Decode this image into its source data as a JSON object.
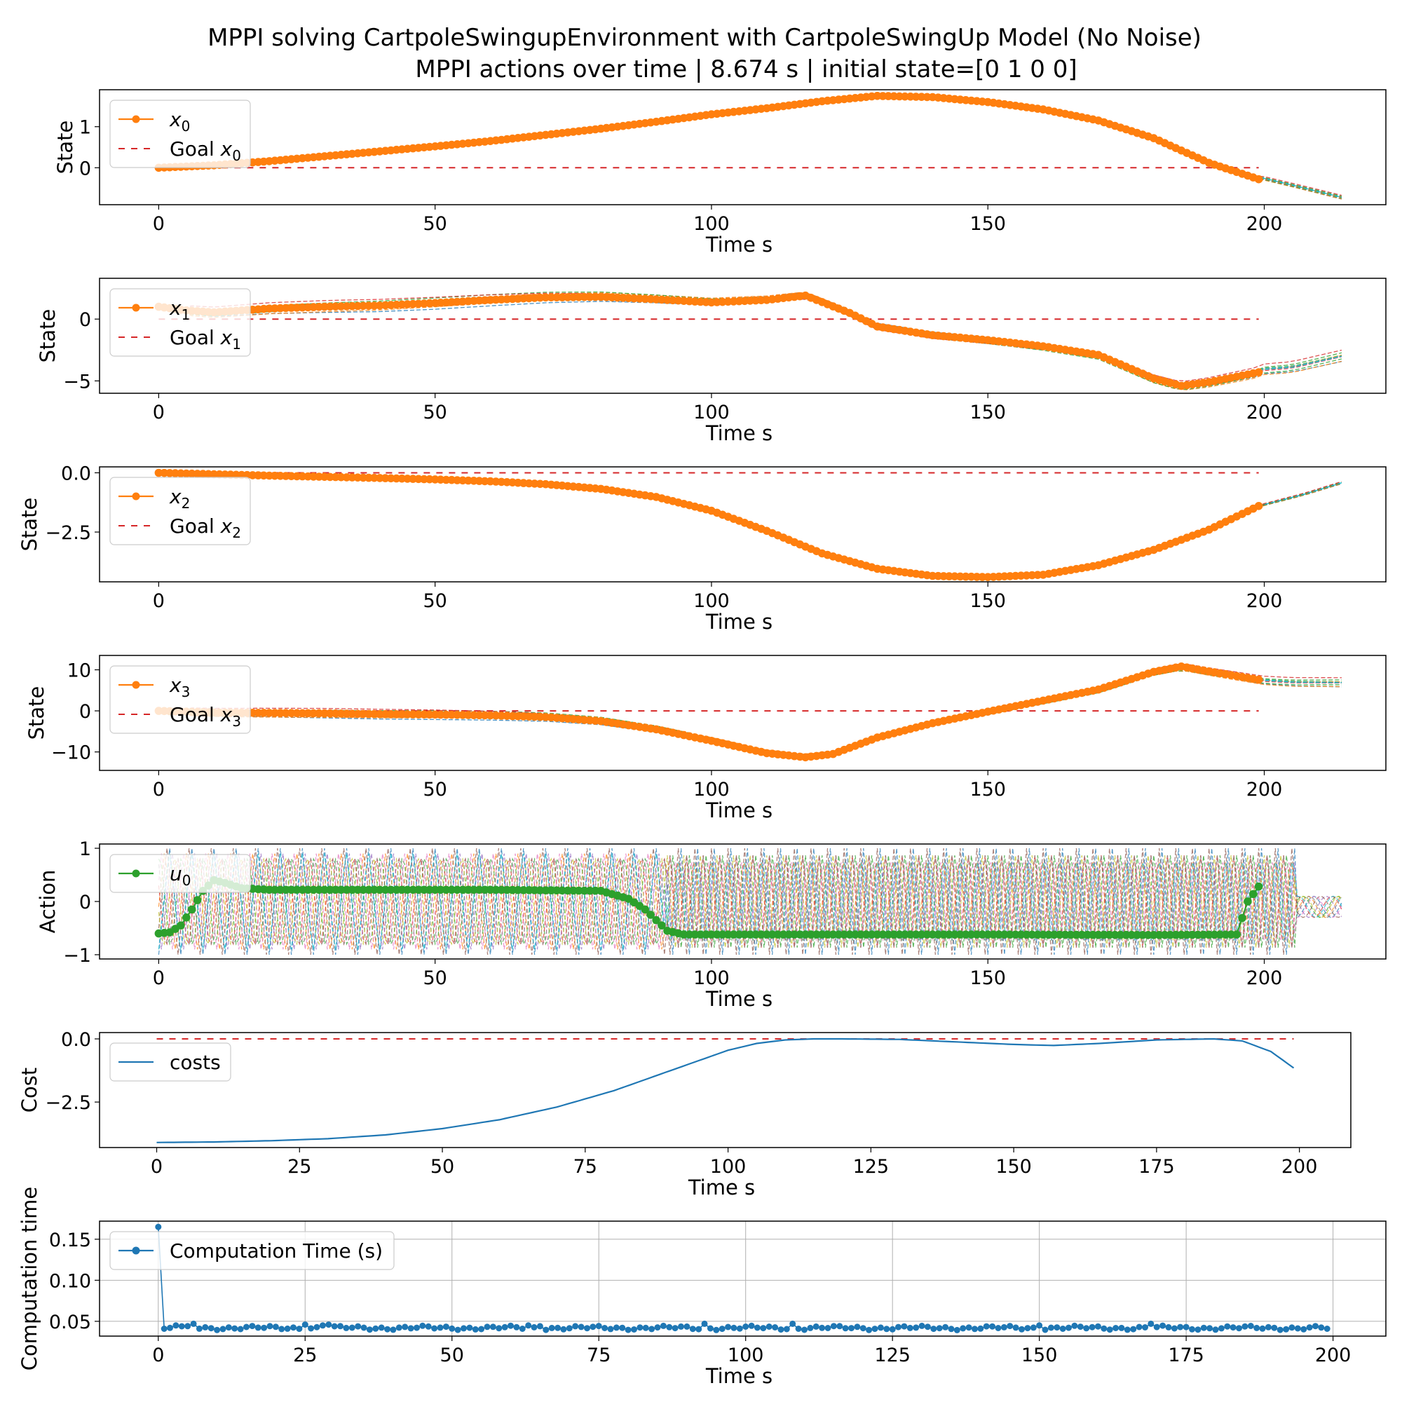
{
  "suptitle": "MPPI solving CartpoleSwingupEnvironment with CartpoleSwingUp Model (No Noise)",
  "colors": {
    "state": "#ff7f0e",
    "action": "#2ca02c",
    "cost": "#1f77b4",
    "goal": "#d62728",
    "rollouts": [
      "#1f77b4",
      "#ff7f0e",
      "#2ca02c",
      "#d62728",
      "#9467bd",
      "#8c564b",
      "#e377c2",
      "#7f7f7f",
      "#bcbd22",
      "#17becf"
    ]
  },
  "chart_data": [
    {
      "id": "x0",
      "type": "line",
      "title": "MPPI actions over time | 8.674 s | initial state=[0 1 0 0]",
      "xlabel": "Time s",
      "ylabel": "State",
      "xlim": [
        -10.7,
        222
      ],
      "ylim": [
        -0.9,
        1.9
      ],
      "xticks": [
        0,
        50,
        100,
        150,
        200
      ],
      "yticks": [
        0,
        1
      ],
      "grid": false,
      "legend": {
        "placement": "upper-left",
        "entries": [
          {
            "label": "x",
            "sub": "0",
            "style": "marker-line"
          },
          {
            "label": "Goal x",
            "sub": "0",
            "style": "dashed"
          }
        ]
      },
      "series": [
        {
          "role": "main",
          "x": [
            0,
            10,
            20,
            30,
            40,
            50,
            60,
            70,
            80,
            90,
            100,
            110,
            120,
            130,
            140,
            150,
            160,
            170,
            180,
            190,
            199
          ],
          "y": [
            0,
            0.06,
            0.16,
            0.28,
            0.4,
            0.52,
            0.65,
            0.8,
            0.95,
            1.12,
            1.3,
            1.45,
            1.62,
            1.75,
            1.72,
            1.6,
            1.42,
            1.15,
            0.72,
            0.12,
            -0.28
          ]
        },
        {
          "role": "rollout_tail",
          "x": [
            195,
            205,
            214
          ],
          "y": [
            -0.1,
            -0.42,
            -0.72
          ]
        },
        {
          "role": "goal",
          "x": [
            0,
            199
          ],
          "y": [
            0,
            0
          ]
        }
      ],
      "rollout_spread": 0.05
    },
    {
      "id": "x1",
      "type": "line",
      "xlabel": "Time s",
      "ylabel": "State",
      "xlim": [
        -10.7,
        222
      ],
      "ylim": [
        -6,
        3.3
      ],
      "xticks": [
        0,
        50,
        100,
        150,
        200
      ],
      "yticks": [
        -5,
        0
      ],
      "grid": false,
      "legend": {
        "placement": "upper-left",
        "entries": [
          {
            "label": "x",
            "sub": "1",
            "style": "marker-line"
          },
          {
            "label": "Goal x",
            "sub": "1",
            "style": "dashed"
          }
        ]
      },
      "series": [
        {
          "role": "main",
          "x": [
            0,
            5,
            10,
            20,
            30,
            40,
            50,
            60,
            70,
            80,
            90,
            100,
            110,
            117,
            125,
            130,
            140,
            150,
            160,
            170,
            180,
            185,
            190,
            199
          ],
          "y": [
            1.0,
            0.7,
            0.55,
            0.85,
            1.0,
            1.1,
            1.3,
            1.55,
            1.75,
            1.8,
            1.6,
            1.35,
            1.55,
            1.9,
            0.5,
            -0.6,
            -1.3,
            -1.7,
            -2.2,
            -2.9,
            -4.8,
            -5.4,
            -5.1,
            -4.3
          ]
        },
        {
          "role": "rollout_tail",
          "x": [
            199,
            205,
            214
          ],
          "y": [
            -4.1,
            -3.9,
            -3.0
          ]
        },
        {
          "role": "goal",
          "x": [
            0,
            199
          ],
          "y": [
            0,
            0
          ]
        }
      ],
      "rollout_spread": 0.5
    },
    {
      "id": "x2",
      "type": "line",
      "xlabel": "Time s",
      "ylabel": "State",
      "xlim": [
        -10.7,
        222
      ],
      "ylim": [
        -4.6,
        0.25
      ],
      "xticks": [
        0,
        50,
        100,
        150,
        200
      ],
      "yticks": [
        -2.5,
        0.0
      ],
      "ytick_labels": [
        "−2.5",
        "0.0"
      ],
      "grid": false,
      "legend": {
        "placement": "upper-left",
        "entries": [
          {
            "label": "x",
            "sub": "2",
            "style": "marker-line"
          },
          {
            "label": "Goal x",
            "sub": "2",
            "style": "dashed"
          }
        ]
      },
      "series": [
        {
          "role": "main",
          "x": [
            0,
            10,
            20,
            30,
            40,
            50,
            60,
            70,
            80,
            90,
            100,
            110,
            120,
            130,
            140,
            150,
            160,
            170,
            180,
            190,
            199
          ],
          "y": [
            0,
            -0.06,
            -0.12,
            -0.17,
            -0.22,
            -0.28,
            -0.36,
            -0.48,
            -0.68,
            -1.02,
            -1.6,
            -2.45,
            -3.4,
            -4.05,
            -4.35,
            -4.4,
            -4.3,
            -3.9,
            -3.25,
            -2.4,
            -1.4
          ]
        },
        {
          "role": "rollout_tail",
          "x": [
            199,
            207,
            214
          ],
          "y": [
            -1.4,
            -0.92,
            -0.42
          ]
        },
        {
          "role": "goal",
          "x": [
            0,
            199
          ],
          "y": [
            0,
            0
          ]
        }
      ],
      "rollout_spread": 0.05
    },
    {
      "id": "x3",
      "type": "line",
      "xlabel": "Time s",
      "ylabel": "State",
      "xlim": [
        -10.7,
        222
      ],
      "ylim": [
        -14.5,
        13.5
      ],
      "xticks": [
        0,
        50,
        100,
        150,
        200
      ],
      "yticks": [
        -10,
        0,
        10
      ],
      "grid": false,
      "legend": {
        "placement": "upper-left",
        "entries": [
          {
            "label": "x",
            "sub": "3",
            "style": "marker-line"
          },
          {
            "label": "Goal x",
            "sub": "3",
            "style": "dashed"
          }
        ]
      },
      "series": [
        {
          "role": "main",
          "x": [
            0,
            10,
            20,
            30,
            40,
            50,
            60,
            70,
            80,
            90,
            100,
            110,
            117,
            122,
            130,
            140,
            150,
            160,
            170,
            180,
            185,
            190,
            199
          ],
          "y": [
            0,
            -0.4,
            -0.5,
            -0.6,
            -0.8,
            -0.9,
            -1.1,
            -1.5,
            -2.5,
            -4.5,
            -7.3,
            -10.3,
            -11.3,
            -10.5,
            -6.5,
            -3.0,
            -0.2,
            2.5,
            5.2,
            9.5,
            10.8,
            9.6,
            7.6
          ]
        },
        {
          "role": "rollout_tail",
          "x": [
            199,
            205,
            214
          ],
          "y": [
            7.5,
            7.0,
            6.9
          ]
        },
        {
          "role": "goal",
          "x": [
            0,
            199
          ],
          "y": [
            0,
            0
          ]
        }
      ],
      "rollout_spread": 1.2
    },
    {
      "id": "u0",
      "type": "line",
      "xlabel": "Time s",
      "ylabel": "Action",
      "xlim": [
        -10.7,
        222
      ],
      "ylim": [
        -1.08,
        1.08
      ],
      "xticks": [
        0,
        50,
        100,
        150,
        200
      ],
      "yticks": [
        -1,
        0,
        1
      ],
      "grid": false,
      "legend": {
        "placement": "upper-left",
        "entries": [
          {
            "label": "u",
            "sub": "0",
            "style": "marker-line-green"
          }
        ]
      },
      "series": [
        {
          "role": "main",
          "x": [
            0,
            2,
            4,
            6,
            8,
            10,
            12,
            15,
            20,
            40,
            60,
            80,
            85,
            88,
            90,
            92,
            95,
            120,
            150,
            180,
            195,
            197,
            199
          ],
          "y": [
            -0.6,
            -0.58,
            -0.45,
            -0.15,
            0.2,
            0.4,
            0.35,
            0.25,
            0.22,
            0.22,
            0.22,
            0.2,
            0.05,
            -0.15,
            -0.35,
            -0.55,
            -0.62,
            -0.62,
            -0.62,
            -0.63,
            -0.62,
            0.0,
            0.28
          ]
        },
        {
          "role": "rollout_envelope",
          "x": [
            0,
            214
          ],
          "y": [
            -1,
            1
          ]
        }
      ]
    },
    {
      "id": "cost",
      "type": "line",
      "xlabel": "Time s",
      "ylabel": "Cost",
      "xlim": [
        -10,
        209
      ],
      "ylim": [
        -4.3,
        0.25
      ],
      "xticks": [
        0,
        25,
        50,
        75,
        100,
        125,
        150,
        175,
        200
      ],
      "yticks": [
        -2.5,
        0.0
      ],
      "ytick_labels": [
        "−2.5",
        "0.0"
      ],
      "grid": false,
      "legend": {
        "placement": "upper-left",
        "entries": [
          {
            "label": "costs",
            "sub": "",
            "style": "line-blue"
          }
        ]
      },
      "series": [
        {
          "role": "main",
          "x": [
            0,
            10,
            20,
            30,
            40,
            50,
            60,
            70,
            80,
            90,
            100,
            105,
            110,
            115,
            120,
            130,
            140,
            150,
            157,
            165,
            175,
            185,
            190,
            195,
            199
          ],
          "y": [
            -4.1,
            -4.08,
            -4.03,
            -3.95,
            -3.8,
            -3.55,
            -3.2,
            -2.7,
            -2.05,
            -1.25,
            -0.45,
            -0.18,
            -0.04,
            0.0,
            0.0,
            -0.02,
            -0.12,
            -0.22,
            -0.26,
            -0.18,
            -0.04,
            0.0,
            -0.08,
            -0.5,
            -1.15
          ]
        },
        {
          "role": "goal",
          "x": [
            0,
            199
          ],
          "y": [
            0,
            0
          ]
        }
      ]
    },
    {
      "id": "comp",
      "type": "line",
      "xlabel": "Time s",
      "ylabel": "Computation time",
      "xlim": [
        -10,
        209
      ],
      "ylim": [
        0.032,
        0.172
      ],
      "xticks": [
        0,
        25,
        50,
        75,
        100,
        125,
        150,
        175,
        200
      ],
      "yticks": [
        0.05,
        0.1,
        0.15
      ],
      "ytick_labels": [
        "0.05",
        "0.10",
        "0.15"
      ],
      "grid": true,
      "legend": {
        "placement": "upper-left",
        "entries": [
          {
            "label": "Computation Time (s)",
            "sub": "",
            "style": "marker-line-blue"
          }
        ]
      },
      "series": [
        {
          "role": "main",
          "x": [
            0,
            1,
            2,
            3,
            6,
            25,
            28,
            29,
            63,
            65,
            93,
            108,
            150,
            169,
            199
          ],
          "y": [
            0.165,
            0.041,
            0.042,
            0.045,
            0.047,
            0.046,
            0.045,
            0.046,
            0.045,
            0.044,
            0.047,
            0.047,
            0.045,
            0.047,
            0.041
          ]
        }
      ],
      "baseline": 0.042
    }
  ]
}
